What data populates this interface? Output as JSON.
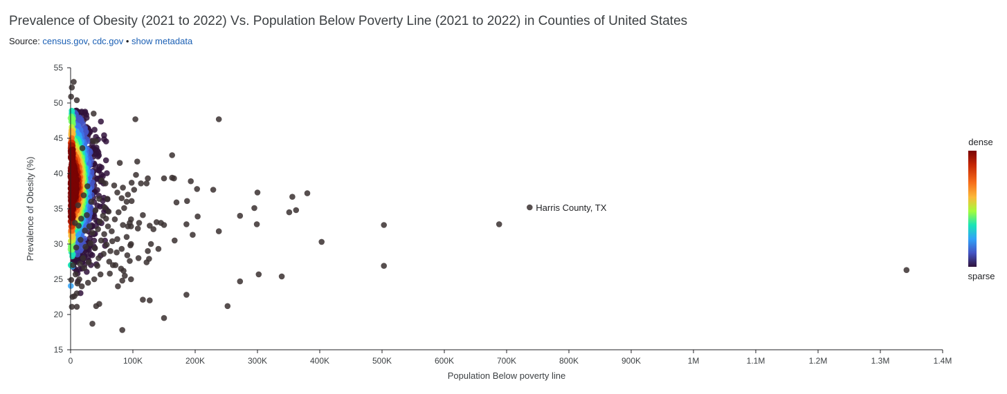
{
  "header": {
    "title": "Prevalence of Obesity (2021 to 2022) Vs. Population Below Poverty Line (2021 to 2022) in Counties of United States",
    "source_prefix": "Source: ",
    "source_links": [
      "census.gov",
      "cdc.gov"
    ],
    "separator_comma": ", ",
    "separator_bullet": " • ",
    "metadata_link": "show metadata"
  },
  "legend": {
    "top_label": "dense",
    "bottom_label": "sparse"
  },
  "colors": {
    "point_sparse": "#3a3030",
    "link": "#1a5fb4",
    "axis": "#202124"
  },
  "chart_data": {
    "type": "scatter",
    "title": "Prevalence of Obesity (2021 to 2022) Vs. Population Below Poverty Line (2021 to 2022) in Counties of United States",
    "xlabel": "Population Below poverty line",
    "ylabel": "Prevalence of Obesity (%)",
    "xlim": [
      0,
      1400000
    ],
    "ylim": [
      15,
      55
    ],
    "x_ticks": [
      0,
      100000,
      200000,
      300000,
      400000,
      500000,
      600000,
      700000,
      800000,
      900000,
      1000000,
      1100000,
      1200000,
      1300000,
      1400000
    ],
    "x_tick_labels": [
      "0",
      "100K",
      "200K",
      "300K",
      "400K",
      "500K",
      "600K",
      "700K",
      "800K",
      "900K",
      "1M",
      "1.1M",
      "1.2M",
      "1.3M",
      "1.4M"
    ],
    "y_ticks": [
      15,
      20,
      25,
      30,
      35,
      40,
      45,
      50,
      55
    ],
    "y_tick_labels": [
      "15",
      "20",
      "25",
      "30",
      "35",
      "40",
      "45",
      "50",
      "55"
    ],
    "grid": false,
    "legend_position": "right",
    "annotations": [
      {
        "label": "Harris County, TX",
        "x": 737000,
        "y": 35.2
      }
    ],
    "points": [
      [
        1342000,
        26.3
      ],
      [
        737000,
        35.2
      ],
      [
        688000,
        32.8
      ],
      [
        503000,
        32.7
      ],
      [
        503000,
        26.9
      ],
      [
        403000,
        30.3
      ],
      [
        380000,
        37.2
      ],
      [
        362000,
        34.8
      ],
      [
        356000,
        36.7
      ],
      [
        351000,
        34.5
      ],
      [
        339000,
        25.4
      ],
      [
        302000,
        25.7
      ],
      [
        300000,
        37.3
      ],
      [
        299000,
        32.8
      ],
      [
        295000,
        35.1
      ],
      [
        272000,
        34.0
      ],
      [
        272000,
        24.7
      ],
      [
        252000,
        21.2
      ],
      [
        238000,
        47.7
      ],
      [
        238000,
        31.8
      ],
      [
        229000,
        37.7
      ],
      [
        204000,
        33.9
      ],
      [
        203000,
        37.8
      ],
      [
        196000,
        31.3
      ],
      [
        193000,
        38.9
      ],
      [
        187000,
        36.1
      ],
      [
        186000,
        32.8
      ],
      [
        186000,
        22.8
      ],
      [
        170000,
        35.9
      ],
      [
        167000,
        30.5
      ],
      [
        166000,
        39.3
      ],
      [
        163000,
        39.4
      ],
      [
        163000,
        42.6
      ],
      [
        150000,
        39.3
      ],
      [
        150000,
        32.7
      ],
      [
        150000,
        19.5
      ],
      [
        145000,
        33.0
      ],
      [
        141000,
        29.3
      ],
      [
        138000,
        33.1
      ],
      [
        133000,
        32.1
      ],
      [
        129000,
        30.0
      ],
      [
        127000,
        22.0
      ],
      [
        127000,
        32.6
      ],
      [
        126000,
        27.9
      ],
      [
        124000,
        39.3
      ],
      [
        124000,
        29.0
      ],
      [
        122000,
        38.6
      ],
      [
        122000,
        27.4
      ],
      [
        116000,
        22.1
      ],
      [
        116000,
        34.1
      ],
      [
        113000,
        38.6
      ],
      [
        110000,
        33.0
      ],
      [
        109000,
        28.0
      ],
      [
        108000,
        32.2
      ],
      [
        107000,
        41.7
      ],
      [
        105000,
        39.8
      ],
      [
        104000,
        47.7
      ],
      [
        102000,
        37.7
      ],
      [
        98000,
        38.7
      ],
      [
        98000,
        36.1
      ],
      [
        97000,
        33.5
      ],
      [
        97000,
        32.5
      ],
      [
        97000,
        30.0
      ],
      [
        97000,
        25.0
      ],
      [
        96000,
        29.8
      ],
      [
        95000,
        33.0
      ],
      [
        95000,
        27.6
      ],
      [
        92000,
        37.0
      ],
      [
        92000,
        32.5
      ],
      [
        91000,
        28.4
      ],
      [
        90000,
        31.0
      ],
      [
        90000,
        36.0
      ],
      [
        87000,
        25.5
      ],
      [
        86000,
        35.1
      ],
      [
        85000,
        26.2
      ],
      [
        84000,
        38.0
      ],
      [
        84000,
        32.7
      ],
      [
        83000,
        17.8
      ],
      [
        83000,
        24.8
      ],
      [
        82000,
        36.5
      ],
      [
        82000,
        29.3
      ],
      [
        81000,
        26.5
      ],
      [
        79000,
        41.5
      ],
      [
        77000,
        34.5
      ],
      [
        76000,
        24.0
      ],
      [
        75000,
        37.3
      ],
      [
        75000,
        30.7
      ],
      [
        74000,
        28.8
      ],
      [
        72000,
        27.0
      ],
      [
        71000,
        33.5
      ],
      [
        70000,
        38.3
      ],
      [
        68000,
        27.0
      ],
      [
        67000,
        30.4
      ],
      [
        66000,
        31.8
      ],
      [
        64000,
        29.0
      ],
      [
        63000,
        25.8
      ],
      [
        62000,
        27.5
      ],
      [
        61000,
        34.6
      ],
      [
        60000,
        32.5
      ],
      [
        59000,
        36.4
      ],
      [
        58000,
        29.9
      ],
      [
        57000,
        33.6
      ],
      [
        56000,
        38.6
      ],
      [
        55000,
        35.2
      ],
      [
        54000,
        31.4
      ],
      [
        53000,
        28.6
      ],
      [
        52000,
        34.0
      ],
      [
        50000,
        39.0
      ],
      [
        49000,
        30.5
      ],
      [
        48000,
        25.7
      ],
      [
        47000,
        33.2
      ],
      [
        46000,
        21.5
      ],
      [
        46000,
        36.4
      ],
      [
        45000,
        28.0
      ],
      [
        44000,
        32.1
      ],
      [
        43000,
        26.9
      ],
      [
        41000,
        44.6
      ],
      [
        41000,
        21.2
      ],
      [
        40000,
        34.8
      ],
      [
        39000,
        29.4
      ],
      [
        38000,
        25.0
      ],
      [
        37000,
        48.5
      ],
      [
        36000,
        44.6
      ],
      [
        35000,
        18.7
      ],
      [
        35000,
        31.6
      ],
      [
        33000,
        36.0
      ],
      [
        32000,
        30.1
      ],
      [
        30000,
        32.5
      ],
      [
        29000,
        27.4
      ],
      [
        28000,
        24.5
      ],
      [
        27000,
        38.2
      ],
      [
        26000,
        34.1
      ],
      [
        24000,
        29.6
      ],
      [
        23000,
        31.9
      ],
      [
        22000,
        26.6
      ],
      [
        21000,
        36.9
      ],
      [
        20000,
        28.0
      ],
      [
        19000,
        43.6
      ],
      [
        18000,
        24.0
      ],
      [
        17000,
        33.6
      ],
      [
        16000,
        30.6
      ],
      [
        15000,
        27.2
      ],
      [
        14000,
        25.0
      ],
      [
        13000,
        32.6
      ],
      [
        12000,
        35.5
      ],
      [
        11000,
        24.4
      ],
      [
        10000,
        23.0
      ],
      [
        10000,
        21.1
      ],
      [
        10000,
        50.4
      ],
      [
        9000,
        29.5
      ],
      [
        8000,
        25.7
      ],
      [
        7000,
        33.0
      ],
      [
        6000,
        22.6
      ],
      [
        5000,
        53.0
      ],
      [
        4000,
        27.0
      ],
      [
        3000,
        22.5
      ],
      [
        2000,
        21.1
      ],
      [
        2000,
        52.2
      ],
      [
        1000,
        24.9
      ],
      [
        800,
        50.9
      ]
    ],
    "dense_region": {
      "x_range": [
        0,
        60000
      ],
      "y_range": [
        22,
        49
      ],
      "peak": [
        12000,
        38.5
      ]
    }
  }
}
